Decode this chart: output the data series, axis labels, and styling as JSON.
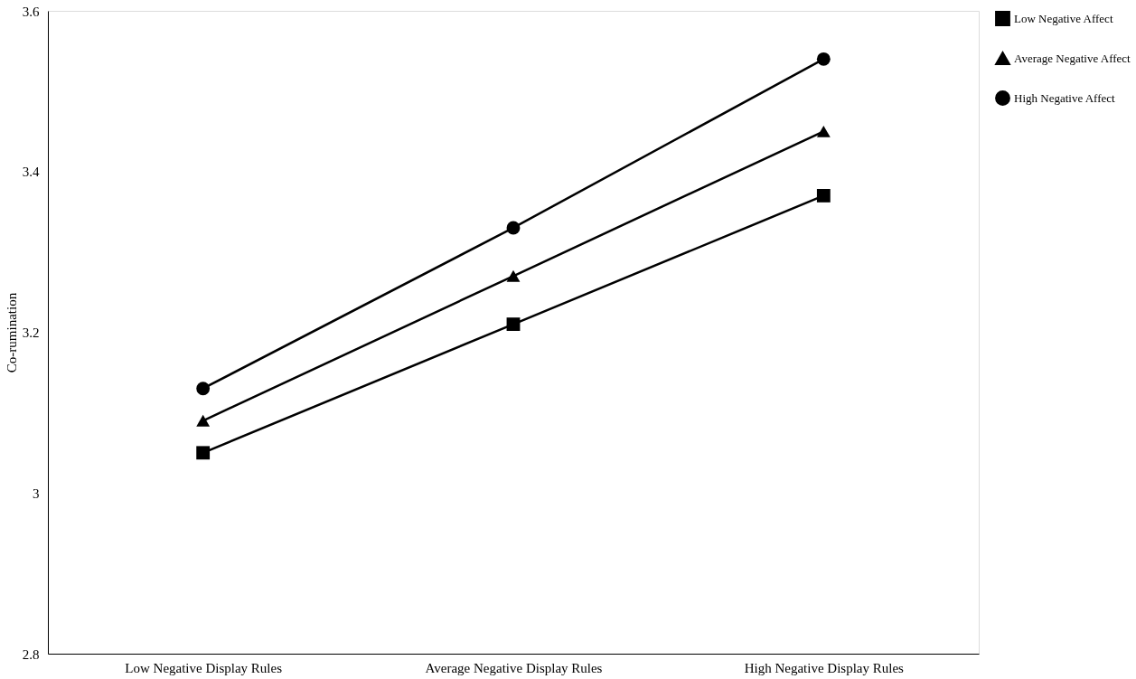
{
  "chart_data": {
    "type": "line",
    "ylabel": "Co-rumination",
    "categories": [
      "Low Negative Display Rules",
      "Average Negative Display Rules",
      "High Negative Display Rules"
    ],
    "series": [
      {
        "name": "Low Negative Affect",
        "color": "#000000",
        "marker": "square",
        "values": [
          3.05,
          3.21,
          3.37
        ]
      },
      {
        "name": "Average Negative Affect",
        "color": "#000000",
        "marker": "triangle",
        "values": [
          3.09,
          3.27,
          3.45
        ]
      },
      {
        "name": "High Negative Affect",
        "color": "#000000",
        "marker": "circle",
        "values": [
          3.13,
          3.33,
          3.54
        ]
      }
    ],
    "ylim": [
      2.8,
      3.6
    ],
    "yticks": [
      2.8,
      3,
      3.2,
      3.4,
      3.6
    ],
    "grid": false,
    "legend": "right",
    "line_style": "solid"
  }
}
